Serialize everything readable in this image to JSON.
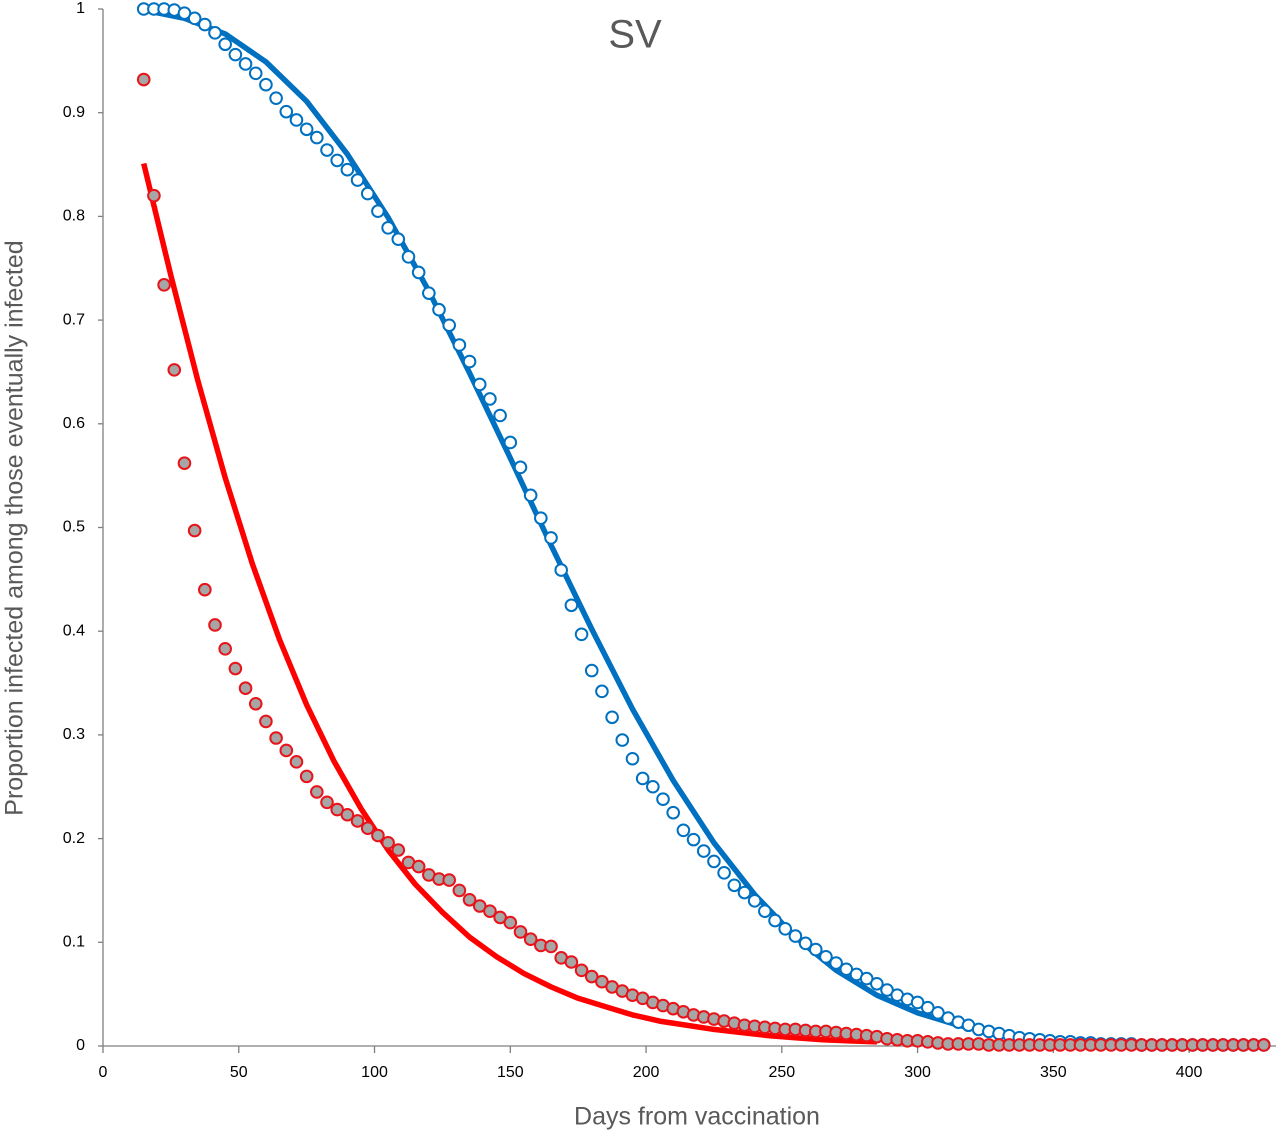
{
  "chart_data": {
    "type": "scatter",
    "title": "SV",
    "xlabel": "Days from vaccination",
    "ylabel": "Proportion infected among those eventually infected",
    "xlim": [
      0,
      432
    ],
    "ylim": [
      0,
      1
    ],
    "xticks": [
      0,
      50,
      100,
      150,
      200,
      250,
      300,
      350,
      400
    ],
    "yticks": [
      0,
      0.1,
      0.2,
      0.3,
      0.4,
      0.5,
      0.6,
      0.7,
      0.8,
      0.9,
      1
    ],
    "x": [
      15,
      18.75,
      22.5,
      26.25,
      30,
      33.75,
      37.5,
      41.25,
      45,
      48.75,
      52.5,
      56.25,
      60,
      63.75,
      67.5,
      71.25,
      75,
      78.75,
      82.5,
      86.25,
      90,
      93.75,
      97.5,
      101.25,
      105,
      108.75,
      112.5,
      116.25,
      120,
      123.75,
      127.5,
      131.25,
      135,
      138.75,
      142.5,
      146.25,
      150,
      153.75,
      157.5,
      161.25,
      165,
      168.75,
      172.5,
      176.25,
      180,
      183.75,
      187.5,
      191.25,
      195,
      198.75,
      202.5,
      206.25,
      210,
      213.75,
      217.5,
      221.25,
      225,
      228.75,
      232.5,
      236.25,
      240,
      243.75,
      247.5,
      251.25,
      255,
      258.75,
      262.5,
      266.25,
      270,
      273.75,
      277.5,
      281.25,
      285,
      288.75,
      292.5,
      296.25,
      300,
      303.75,
      307.5,
      311.25,
      315,
      318.75,
      322.5,
      326.25,
      330,
      333.75,
      337.5,
      341.25,
      345,
      348.75,
      352.5,
      356.25,
      360,
      363.75,
      367.5,
      371.25,
      375,
      378.75,
      382.5,
      386.25,
      390,
      393.75,
      397.5,
      401.25,
      405,
      408.75,
      412.5,
      416.25,
      420,
      423.75,
      427.5
    ],
    "series": [
      {
        "type": "line",
        "color": "#0070c0",
        "x": [
          15,
          30,
          45,
          60,
          75,
          90,
          105,
          120,
          135,
          150,
          165,
          180,
          195,
          210,
          225,
          240,
          255,
          270,
          285,
          300,
          315,
          330,
          345,
          360,
          375
        ],
        "values": [
          0.999,
          0.991,
          0.976,
          0.949,
          0.911,
          0.86,
          0.799,
          0.728,
          0.649,
          0.567,
          0.483,
          0.402,
          0.325,
          0.256,
          0.196,
          0.146,
          0.105,
          0.073,
          0.049,
          0.032,
          0.02,
          0.012,
          0.007,
          0.004,
          0.002
        ]
      },
      {
        "type": "scatter",
        "color": "#0070c0",
        "fill": "#ffffff",
        "values": [
          1,
          1,
          1,
          0.999,
          0.996,
          0.991,
          0.985,
          0.977,
          0.966,
          0.956,
          0.947,
          0.938,
          0.927,
          0.914,
          0.901,
          0.893,
          0.884,
          0.876,
          0.864,
          0.854,
          0.845,
          0.835,
          0.822,
          0.805,
          0.789,
          0.778,
          0.761,
          0.746,
          0.726,
          0.71,
          0.695,
          0.676,
          0.66,
          0.638,
          0.624,
          0.608,
          0.582,
          0.558,
          0.531,
          0.509,
          0.49,
          0.459,
          0.425,
          0.397,
          0.362,
          0.342,
          0.317,
          0.295,
          0.277,
          0.258,
          0.25,
          0.238,
          0.225,
          0.208,
          0.199,
          0.188,
          0.178,
          0.167,
          0.155,
          0.148,
          0.14,
          0.13,
          0.121,
          0.113,
          0.106,
          0.099,
          0.093,
          0.086,
          0.08,
          0.074,
          0.069,
          0.065,
          0.06,
          0.054,
          0.049,
          0.045,
          0.042,
          0.037,
          0.032,
          0.027,
          0.023,
          0.02,
          0.016,
          0.014,
          0.012,
          0.01,
          0.008,
          0.007,
          0.006,
          0.005,
          0.004,
          0.004,
          0.003,
          0.003,
          0.002,
          0.002,
          0.002,
          0.002,
          0.001,
          0.001,
          0.001,
          0.001,
          0.001,
          0.001,
          0.001,
          0.001,
          0.001,
          0.001,
          0.001,
          0.001,
          0.001
        ]
      },
      {
        "type": "line",
        "color": "#ff0000",
        "x": [
          15,
          25,
          35,
          45,
          55,
          65,
          75,
          85,
          95,
          105,
          115,
          125,
          135,
          145,
          155,
          165,
          175,
          185,
          195,
          205,
          215,
          225,
          235,
          245,
          255,
          265,
          275,
          285
        ],
        "values": [
          0.851,
          0.743,
          0.641,
          0.548,
          0.465,
          0.392,
          0.329,
          0.275,
          0.229,
          0.189,
          0.156,
          0.129,
          0.105,
          0.086,
          0.07,
          0.057,
          0.046,
          0.038,
          0.03,
          0.024,
          0.02,
          0.016,
          0.013,
          0.01,
          0.008,
          0.006,
          0.005,
          0.004
        ]
      },
      {
        "type": "scatter",
        "color": "#e8141a",
        "fill": "#a6a6a6",
        "values": [
          0.932,
          0.82,
          0.734,
          0.652,
          0.562,
          0.497,
          0.44,
          0.406,
          0.383,
          0.364,
          0.345,
          0.33,
          0.313,
          0.297,
          0.285,
          0.274,
          0.26,
          0.245,
          0.235,
          0.228,
          0.223,
          0.217,
          0.21,
          0.203,
          0.196,
          0.189,
          0.177,
          0.173,
          0.165,
          0.161,
          0.16,
          0.15,
          0.141,
          0.135,
          0.13,
          0.124,
          0.119,
          0.11,
          0.103,
          0.097,
          0.096,
          0.085,
          0.081,
          0.073,
          0.067,
          0.062,
          0.057,
          0.053,
          0.049,
          0.046,
          0.042,
          0.039,
          0.036,
          0.033,
          0.03,
          0.028,
          0.026,
          0.024,
          0.022,
          0.02,
          0.019,
          0.018,
          0.017,
          0.016,
          0.016,
          0.015,
          0.014,
          0.014,
          0.013,
          0.012,
          0.011,
          0.01,
          0.009,
          0.007,
          0.006,
          0.005,
          0.005,
          0.004,
          0.003,
          0.002,
          0.002,
          0.002,
          0.002,
          0.001,
          0.001,
          0.001,
          0.001,
          0.001,
          0.001,
          0.001,
          0.001,
          0.001,
          0.001,
          0.001,
          0.001,
          0.001,
          0.001,
          0.001,
          0.001,
          0.001,
          0.001,
          0.001,
          0.001,
          0.001,
          0.001,
          0.001,
          0.001,
          0.001,
          0.001,
          0.001,
          0.001
        ]
      }
    ]
  }
}
